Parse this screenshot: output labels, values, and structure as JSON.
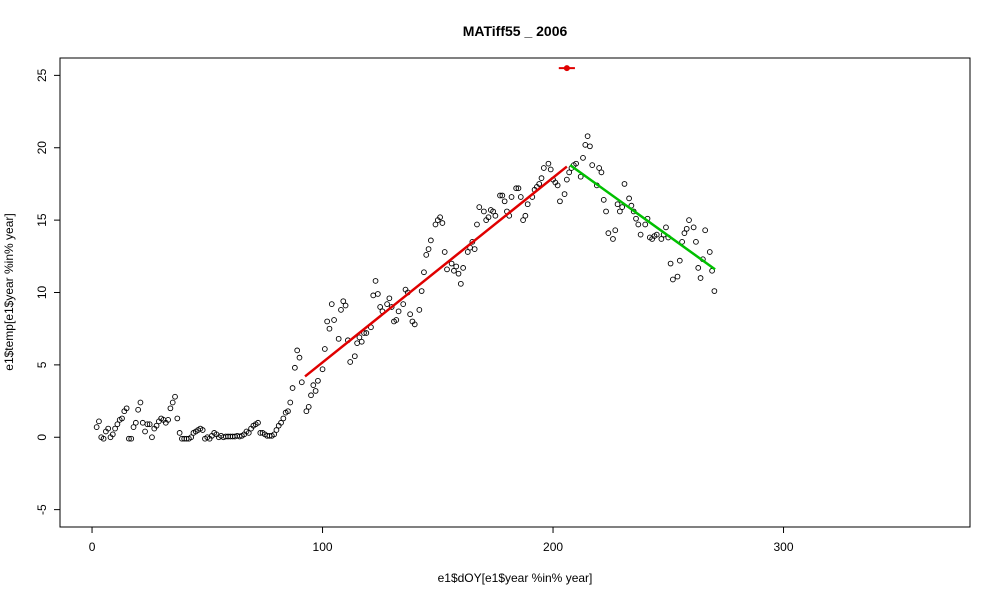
{
  "chart_data": {
    "type": "scatter",
    "title": "MATiff55 _ 2006",
    "xlabel": "e1$dOY[e1$year %in% year]",
    "ylabel": "e1$temp[e1$year %in% year]",
    "color": "#000000",
    "x": [
      2,
      3,
      4,
      5,
      6,
      7,
      8,
      9,
      10,
      11,
      12,
      13,
      14,
      15,
      16,
      17,
      18,
      19,
      20,
      21,
      22,
      23,
      24,
      25,
      26,
      27,
      28,
      29,
      30,
      31,
      32,
      33,
      34,
      35,
      36,
      37,
      38,
      39,
      40,
      41,
      42,
      43,
      44,
      45,
      46,
      47,
      48,
      49,
      50,
      51,
      52,
      53,
      54,
      55,
      56,
      57,
      58,
      59,
      60,
      61,
      62,
      63,
      64,
      65,
      66,
      67,
      68,
      69,
      70,
      71,
      72,
      73,
      74,
      75,
      76,
      77,
      78,
      79,
      80,
      81,
      82,
      83,
      84,
      85,
      86,
      87,
      88,
      89,
      90,
      91,
      93,
      94,
      95,
      96,
      97,
      98,
      100,
      101,
      102,
      103,
      104,
      105,
      107,
      108,
      109,
      110,
      111,
      112,
      114,
      115,
      116,
      117,
      118,
      119,
      121,
      122,
      123,
      124,
      125,
      126,
      128,
      129,
      130,
      131,
      132,
      133,
      135,
      136,
      137,
      138,
      139,
      140,
      142,
      143,
      144,
      145,
      146,
      147,
      149,
      150,
      151,
      152,
      153,
      154,
      156,
      157,
      158,
      159,
      160,
      161,
      163,
      164,
      165,
      166,
      167,
      168,
      170,
      171,
      172,
      173,
      174,
      175,
      177,
      178,
      179,
      180,
      181,
      182,
      184,
      185,
      186,
      187,
      188,
      189,
      191,
      192,
      193,
      194,
      195,
      196,
      198,
      199,
      200,
      201,
      202,
      203,
      205,
      206,
      207,
      208,
      209,
      210,
      212,
      213,
      214,
      215,
      216,
      217,
      219,
      220,
      221,
      222,
      223,
      224,
      226,
      227,
      228,
      229,
      230,
      231,
      233,
      234,
      235,
      236,
      237,
      238,
      240,
      241,
      242,
      243,
      244,
      245,
      247,
      248,
      249,
      250,
      251,
      252,
      254,
      255,
      256,
      257,
      258,
      259,
      261,
      262,
      263,
      264,
      265,
      266,
      268,
      269,
      270
    ],
    "y": [
      0.7,
      1.1,
      0,
      -0.1,
      0.4,
      0.6,
      0,
      0.2,
      0.6,
      0.9,
      1.2,
      1.3,
      1.8,
      2.0,
      -0.1,
      -0.1,
      0.7,
      1.0,
      1.9,
      2.4,
      1.0,
      0.4,
      0.9,
      0.9,
      0.0,
      0.6,
      0.8,
      1.1,
      1.3,
      1.2,
      1.0,
      1.2,
      2.0,
      2.4,
      2.8,
      1.3,
      0.3,
      -0.1,
      -0.1,
      -0.1,
      -0.1,
      0,
      0.3,
      0.4,
      0.5,
      0.6,
      0.5,
      -0.1,
      0,
      -0.1,
      0.1,
      0.3,
      0.2,
      0,
      0.1,
      0,
      0.05,
      0.05,
      0.05,
      0.05,
      0.05,
      0.1,
      0.05,
      0.1,
      0.2,
      0.4,
      0.3,
      0.6,
      0.8,
      0.9,
      1.0,
      0.3,
      0.3,
      0.2,
      0.1,
      0.1,
      0.1,
      0.2,
      0.5,
      0.8,
      1.0,
      1.3,
      1.7,
      1.8,
      2.4,
      3.4,
      4.8,
      6.0,
      5.5,
      3.8,
      1.8,
      2.1,
      2.9,
      3.6,
      3.2,
      3.9,
      4.7,
      6.1,
      8.0,
      7.5,
      9.2,
      8.1,
      6.8,
      8.8,
      9.4,
      9.1,
      6.7,
      5.2,
      5.6,
      6.5,
      6.9,
      6.6,
      7.2,
      7.2,
      7.6,
      9.8,
      10.8,
      9.9,
      9.0,
      8.7,
      9.2,
      9.6,
      9.0,
      8.0,
      8.1,
      8.7,
      9.2,
      10.2,
      10.0,
      8.5,
      8.0,
      7.8,
      8.8,
      10.1,
      11.4,
      12.6,
      13.0,
      13.6,
      14.7,
      15.0,
      15.2,
      14.8,
      12.8,
      11.6,
      12.0,
      11.5,
      11.8,
      11.3,
      10.6,
      11.7,
      12.8,
      13.1,
      13.5,
      13.0,
      14.7,
      15.9,
      15.6,
      15.0,
      15.2,
      15.7,
      15.6,
      15.3,
      16.7,
      16.7,
      16.3,
      15.6,
      15.3,
      16.6,
      17.2,
      17.2,
      16.6,
      15.0,
      15.3,
      16.1,
      16.6,
      17.1,
      17.3,
      17.5,
      17.9,
      18.6,
      18.9,
      18.5,
      17.8,
      17.6,
      17.4,
      16.3,
      16.8,
      17.8,
      18.3,
      18.6,
      18.8,
      18.9,
      18.0,
      19.3,
      20.2,
      20.8,
      20.1,
      18.8,
      17.4,
      18.6,
      18.3,
      16.4,
      15.6,
      14.1,
      13.7,
      14.3,
      16.1,
      15.6,
      15.9,
      17.5,
      16.5,
      16.0,
      15.6,
      15.1,
      14.7,
      14.0,
      14.7,
      15.1,
      13.8,
      13.7,
      13.9,
      14.0,
      13.7,
      14.0,
      14.5,
      13.8,
      12.0,
      10.9,
      11.1,
      12.2,
      13.5,
      14.1,
      14.4,
      15.0,
      14.5,
      13.5,
      11.7,
      11.0,
      12.3,
      14.3,
      12.8,
      11.5,
      10.1
    ],
    "lines": [
      {
        "color": "#e00000",
        "x": [
          92.4,
          206
        ],
        "y": [
          4.2,
          18.7
        ]
      },
      {
        "color": "#00c000",
        "x": [
          207.4,
          270.3
        ],
        "y": [
          18.8,
          11.6
        ]
      }
    ],
    "marker": {
      "color": "#e00000",
      "x": 206,
      "y": 25.5,
      "xerr": 3.5
    },
    "xlim": [
      -13.9,
      380.9
    ],
    "ylim": [
      -6.2,
      26.2
    ],
    "xticks": [
      0,
      100,
      200,
      300
    ],
    "yticks": [
      -5,
      0,
      5,
      10,
      15,
      20,
      25
    ]
  }
}
